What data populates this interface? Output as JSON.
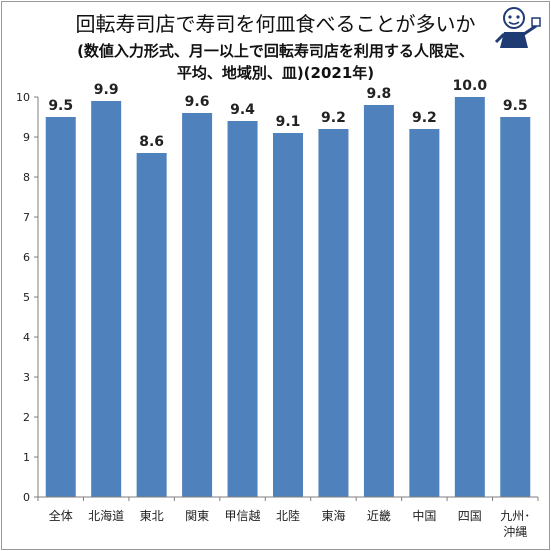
{
  "title": "回転寿司店で寿司を何皿食べることが多いか",
  "subtitle_line1": "(数値入力形式、月一以上で回転寿司店を利用する人限定、",
  "subtitle_line2": "平均、地域別、皿)(2021年)",
  "chart_data": {
    "type": "bar",
    "title": "回転寿司店で寿司を何皿食べることが多いか",
    "subtitle": "(数値入力形式、月一以上で回転寿司店を利用する人限定、平均、地域別、皿)(2021年)",
    "categories": [
      "全体",
      "北海道",
      "東北",
      "関東",
      "甲信越",
      "北陸",
      "東海",
      "近畿",
      "中国",
      "四国",
      "九州・沖縄"
    ],
    "category_lines": [
      [
        "全体"
      ],
      [
        "北海道"
      ],
      [
        "東北"
      ],
      [
        "関東"
      ],
      [
        "甲信越"
      ],
      [
        "北陸"
      ],
      [
        "東海"
      ],
      [
        "近畿"
      ],
      [
        "中国"
      ],
      [
        "四国"
      ],
      [
        "九州･",
        "沖縄"
      ]
    ],
    "values": [
      9.5,
      9.9,
      8.6,
      9.6,
      9.4,
      9.1,
      9.2,
      9.8,
      9.2,
      10.0,
      9.5
    ],
    "value_labels": [
      "9.5",
      "9.9",
      "8.6",
      "9.6",
      "9.4",
      "9.1",
      "9.2",
      "9.8",
      "9.2",
      "10.0",
      "9.5"
    ],
    "yticks": [
      "0",
      "1",
      "2",
      "3",
      "4",
      "5",
      "6",
      "7",
      "8",
      "9",
      "10"
    ],
    "ylim": [
      0,
      10
    ],
    "xlabel": "",
    "ylabel": "",
    "grid": false,
    "legend": "none",
    "colors": {
      "bar": "#4f81bd",
      "axis": "#7f7f7f",
      "text": "#222222"
    }
  }
}
